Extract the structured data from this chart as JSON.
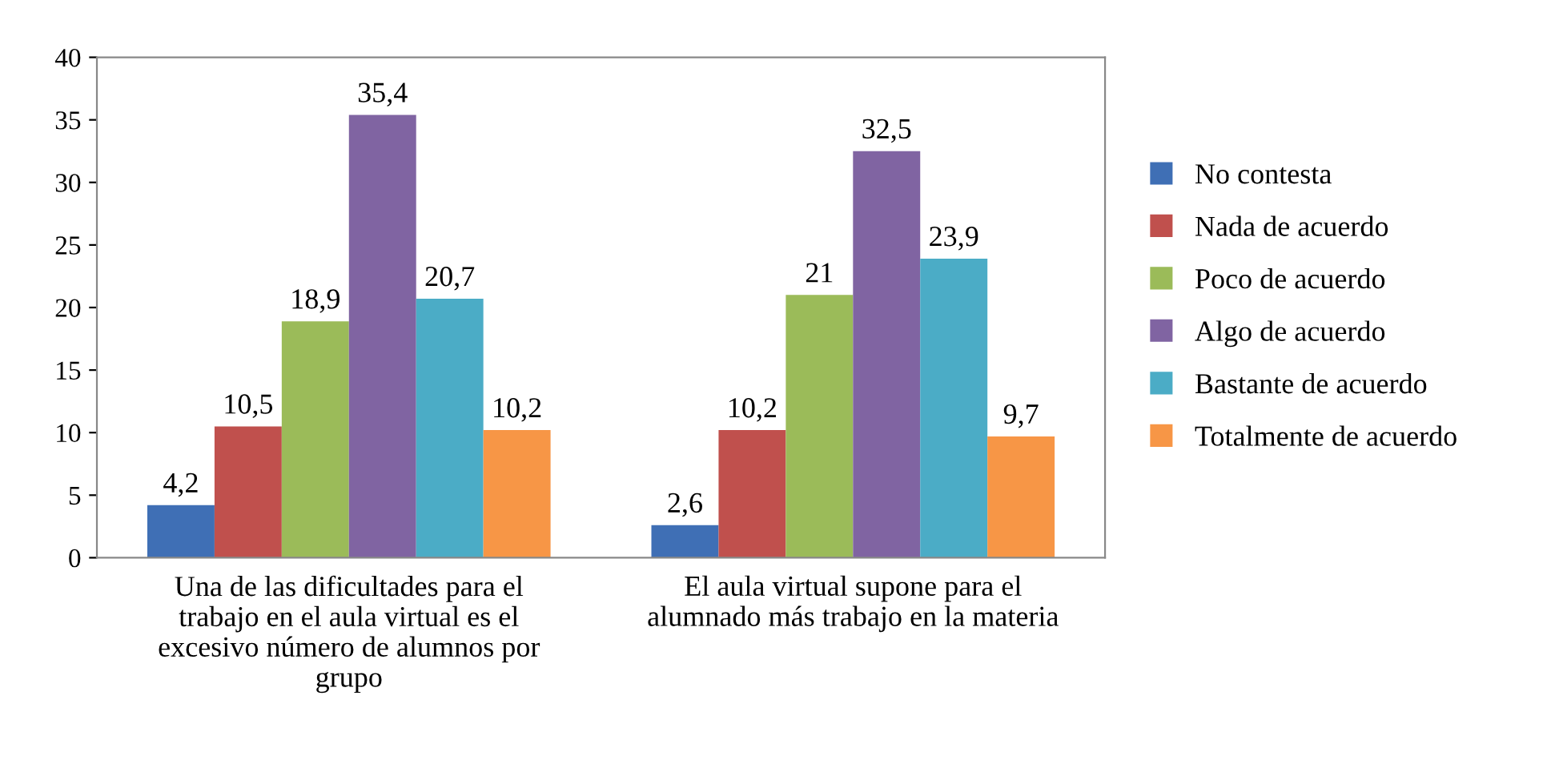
{
  "chart_data": {
    "type": "bar",
    "categories": [
      "Una de las dificultades para el trabajo en el aula virtual es el excesivo número de alumnos por grupo",
      "El aula virtual supone para el alumnado más trabajo en la materia"
    ],
    "series": [
      {
        "name": "No contesta",
        "color": "#3f6fb5",
        "values": [
          4.2,
          2.6
        ],
        "value_labels": [
          "4,2",
          "2,6"
        ]
      },
      {
        "name": "Nada de acuerdo",
        "color": "#c0504d",
        "values": [
          10.5,
          10.2
        ],
        "value_labels": [
          "10,5",
          "10,2"
        ]
      },
      {
        "name": "Poco de acuerdo",
        "color": "#9bbb59",
        "values": [
          18.9,
          21
        ],
        "value_labels": [
          "18,9",
          "21"
        ]
      },
      {
        "name": "Algo de acuerdo",
        "color": "#8064a2",
        "values": [
          35.4,
          32.5
        ],
        "value_labels": [
          "35,4",
          "32,5"
        ]
      },
      {
        "name": "Bastante de acuerdo",
        "color": "#4bacc6",
        "values": [
          20.7,
          23.9
        ],
        "value_labels": [
          "20,7",
          "23,9"
        ]
      },
      {
        "name": "Totalmente de acuerdo",
        "color": "#f79646",
        "values": [
          10.2,
          9.7
        ],
        "value_labels": [
          "10,2",
          "9,7"
        ]
      }
    ],
    "ylim": [
      0,
      40
    ],
    "yticks": [
      0,
      5,
      10,
      15,
      20,
      25,
      30,
      35,
      40
    ],
    "grid": false,
    "legend": "right"
  }
}
